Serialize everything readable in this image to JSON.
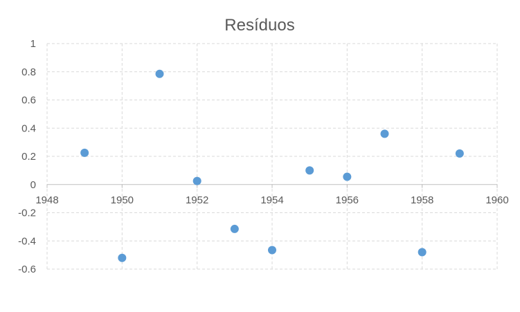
{
  "chart_data": {
    "type": "scatter",
    "title": "Resíduos",
    "xlabel": "",
    "ylabel": "",
    "xlim": [
      1948,
      1960
    ],
    "ylim": [
      -0.6,
      1
    ],
    "x_ticks": [
      1948,
      1950,
      1952,
      1954,
      1956,
      1958,
      1960
    ],
    "y_ticks": [
      1,
      0.8,
      0.6,
      0.4,
      0.2,
      0,
      -0.2,
      -0.4,
      -0.6
    ],
    "x_tick_labels": [
      "1948",
      "1950",
      "1952",
      "1954",
      "1956",
      "1958",
      "1960"
    ],
    "y_tick_labels": [
      "1",
      "0.8",
      "0.6",
      "0.4",
      "0.2",
      "0",
      "-0.2",
      "-0.4",
      "-0.6"
    ],
    "grid": true,
    "marker_color": "#5b9bd5",
    "points": [
      {
        "x": 1949,
        "y": 0.225
      },
      {
        "x": 1950,
        "y": -0.52
      },
      {
        "x": 1951,
        "y": 0.785
      },
      {
        "x": 1952,
        "y": 0.025
      },
      {
        "x": 1953,
        "y": -0.315
      },
      {
        "x": 1954,
        "y": -0.465
      },
      {
        "x": 1955,
        "y": 0.1
      },
      {
        "x": 1956,
        "y": 0.055
      },
      {
        "x": 1957,
        "y": 0.36
      },
      {
        "x": 1958,
        "y": -0.48
      },
      {
        "x": 1959,
        "y": 0.22
      }
    ]
  }
}
